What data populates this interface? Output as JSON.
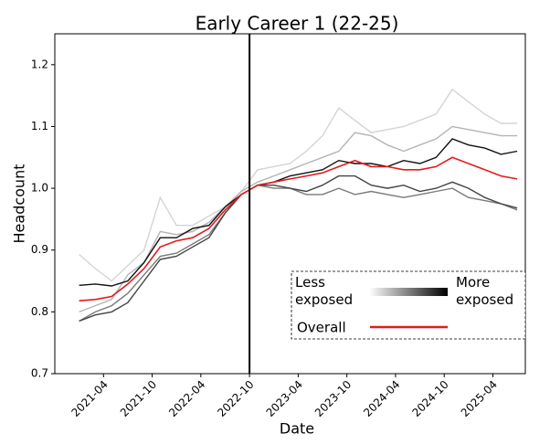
{
  "chart_data": {
    "type": "line",
    "title": "Early Career 1 (22-25)",
    "x_label": "Date",
    "y_label": "Headcount",
    "x": [
      "2021-01",
      "2021-03",
      "2021-05",
      "2021-07",
      "2021-09",
      "2021-11",
      "2022-01",
      "2022-03",
      "2022-05",
      "2022-07",
      "2022-09",
      "2022-11",
      "2023-01",
      "2023-03",
      "2023-05",
      "2023-07",
      "2023-09",
      "2023-11",
      "2024-01",
      "2024-03",
      "2024-05",
      "2024-07",
      "2024-09",
      "2024-11",
      "2025-01",
      "2025-03",
      "2025-05",
      "2025-07"
    ],
    "xlim": [
      "2020-10",
      "2025-08"
    ],
    "xticks": [
      "2021-04",
      "2021-10",
      "2022-04",
      "2022-10",
      "2023-04",
      "2023-10",
      "2024-04",
      "2024-10",
      "2025-04"
    ],
    "ylim": [
      0.7,
      1.25
    ],
    "yticks": [
      0.7,
      0.8,
      0.9,
      {
        "value": 1,
        "label": "1.0"
      },
      1.1,
      1.2
    ],
    "vline": "2022-10",
    "grid": false,
    "series": [
      {
        "color": "#d4d4d4",
        "values": [
          0.893,
          0.87,
          0.85,
          0.875,
          0.9,
          0.985,
          0.94,
          0.94,
          0.955,
          0.97,
          0.995,
          1.03,
          1.035,
          1.04,
          1.06,
          1.085,
          1.13,
          1.11,
          1.09,
          1.095,
          1.1,
          1.11,
          1.12,
          1.16,
          1.14,
          1.12,
          1.105,
          1.105
        ]
      },
      {
        "color": "#b4b4b4",
        "values": [
          0.8,
          0.81,
          0.82,
          0.86,
          0.88,
          0.93,
          0.925,
          0.93,
          0.945,
          0.97,
          0.995,
          1.01,
          1.02,
          1.03,
          1.04,
          1.05,
          1.06,
          1.09,
          1.085,
          1.07,
          1.06,
          1.07,
          1.08,
          1.1,
          1.095,
          1.09,
          1.085,
          1.085
        ]
      },
      {
        "color": "#7a7a7a",
        "values": [
          0.785,
          0.8,
          0.81,
          0.83,
          0.86,
          0.89,
          0.895,
          0.91,
          0.925,
          0.96,
          0.99,
          1.005,
          1.0,
          1.0,
          0.99,
          0.99,
          1.0,
          0.99,
          0.995,
          0.99,
          0.985,
          0.99,
          0.995,
          1.0,
          0.985,
          0.98,
          0.975,
          0.965
        ]
      },
      {
        "color": "#444444",
        "values": [
          0.785,
          0.795,
          0.8,
          0.815,
          0.85,
          0.885,
          0.89,
          0.905,
          0.92,
          0.96,
          0.99,
          1.005,
          1.005,
          1.0,
          0.995,
          1.005,
          1.02,
          1.02,
          1.005,
          1.0,
          1.005,
          0.995,
          1.0,
          1.01,
          1.0,
          0.985,
          0.975,
          0.968
        ]
      },
      {
        "color": "#111111",
        "values": [
          0.843,
          0.845,
          0.842,
          0.85,
          0.88,
          0.92,
          0.92,
          0.935,
          0.94,
          0.97,
          0.99,
          1.005,
          1.01,
          1.02,
          1.025,
          1.03,
          1.045,
          1.04,
          1.04,
          1.035,
          1.045,
          1.04,
          1.05,
          1.08,
          1.07,
          1.065,
          1.055,
          1.06
        ]
      },
      {
        "name": "Overall",
        "color": "#e41a1c",
        "values": [
          0.818,
          0.82,
          0.825,
          0.845,
          0.87,
          0.905,
          0.915,
          0.92,
          0.935,
          0.965,
          0.99,
          1.005,
          1.01,
          1.015,
          1.02,
          1.025,
          1.035,
          1.045,
          1.035,
          1.035,
          1.03,
          1.03,
          1.035,
          1.05,
          1.04,
          1.03,
          1.02,
          1.015
        ]
      }
    ],
    "legend": {
      "low_label": "Less exposed",
      "high_label": "More exposed",
      "low_color": "#ffffff",
      "high_color": "#000000"
    }
  }
}
